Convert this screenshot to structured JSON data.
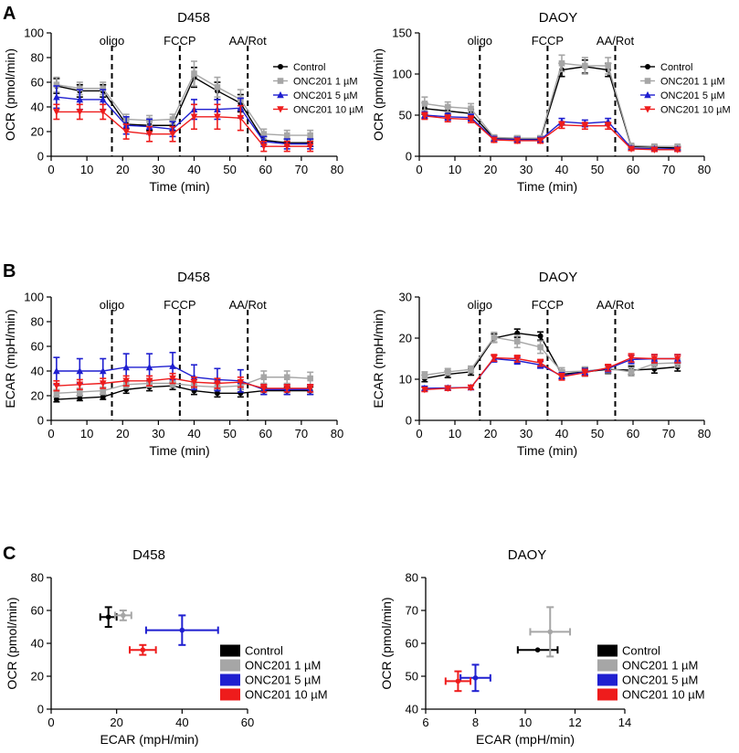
{
  "colors": {
    "control": "#000000",
    "onc1": "#a6a6a6",
    "onc5": "#1f1fd0",
    "onc10": "#ee1c1c"
  },
  "panel_labels": [
    "A",
    "B",
    "C"
  ],
  "chart_data": [
    {
      "id": "a_d458",
      "type": "line",
      "panel": "A",
      "title": "D458",
      "xlabel": "Time (min)",
      "ylabel": "OCR (pmol/min)",
      "xlim": [
        0,
        80
      ],
      "ylim": [
        0,
        100
      ],
      "xticks": [
        0,
        10,
        20,
        30,
        40,
        50,
        60,
        70,
        80
      ],
      "yticks": [
        0,
        20,
        40,
        60,
        80,
        100
      ],
      "x": [
        1.5,
        8,
        14.5,
        21,
        27.5,
        34,
        40,
        46.5,
        53,
        59.5,
        66,
        72.5
      ],
      "vlines": [
        {
          "x": 17,
          "label": "oligo"
        },
        {
          "x": 36,
          "label": "FCCP"
        },
        {
          "x": 55,
          "label": "AA/Rot"
        }
      ],
      "legend": "top-right",
      "series": [
        {
          "name": "Control",
          "color_key": "control",
          "marker": "circle",
          "values": [
            57,
            53,
            53,
            26,
            25,
            25,
            64,
            53,
            43,
            13,
            11,
            11
          ],
          "errors": [
            6,
            5,
            5,
            4,
            4,
            4,
            8,
            7,
            7,
            3,
            3,
            3
          ]
        },
        {
          "name": "ONC201 1 µM",
          "color_key": "onc1",
          "marker": "square",
          "values": [
            58,
            55,
            55,
            30,
            29,
            30,
            67,
            56,
            46,
            18,
            17,
            17
          ],
          "errors": [
            6,
            5,
            5,
            4,
            4,
            4,
            10,
            8,
            8,
            4,
            4,
            4
          ]
        },
        {
          "name": "ONC201 5 µM",
          "color_key": "onc5",
          "marker": "triangle-up",
          "values": [
            48,
            46,
            46,
            25,
            24,
            22,
            38,
            38,
            39,
            12,
            10,
            10
          ],
          "errors": [
            9,
            8,
            8,
            7,
            6,
            6,
            8,
            8,
            8,
            4,
            4,
            4
          ]
        },
        {
          "name": "ONC201 10 µM",
          "color_key": "onc10",
          "marker": "triangle-down",
          "values": [
            36,
            36,
            36,
            20,
            18,
            18,
            32,
            32,
            31,
            8,
            8,
            8
          ],
          "errors": [
            6,
            6,
            6,
            6,
            6,
            6,
            10,
            10,
            10,
            4,
            4,
            4
          ]
        }
      ]
    },
    {
      "id": "a_daoy",
      "type": "line",
      "panel": "A",
      "title": "DAOY",
      "xlabel": "Time (min)",
      "ylabel": "OCR (pmol/min)",
      "xlim": [
        0,
        80
      ],
      "ylim": [
        0,
        150
      ],
      "xticks": [
        0,
        10,
        20,
        30,
        40,
        50,
        60,
        70,
        80
      ],
      "yticks": [
        0,
        50,
        100,
        150
      ],
      "x": [
        1.5,
        8,
        14.5,
        21,
        27.5,
        34,
        40,
        46.5,
        53,
        59.5,
        66,
        72.5
      ],
      "vlines": [
        {
          "x": 17,
          "label": "oligo"
        },
        {
          "x": 36,
          "label": "FCCP"
        },
        {
          "x": 55,
          "label": "AA/Rot"
        }
      ],
      "legend": "top-right",
      "series": [
        {
          "name": "Control",
          "color_key": "control",
          "marker": "circle",
          "values": [
            58,
            55,
            52,
            22,
            21,
            21,
            105,
            109,
            105,
            12,
            11,
            10
          ],
          "errors": [
            7,
            5,
            5,
            3,
            3,
            3,
            8,
            8,
            8,
            2,
            2,
            2
          ]
        },
        {
          "name": "ONC201 1 µM",
          "color_key": "onc1",
          "marker": "square",
          "values": [
            64,
            60,
            58,
            23,
            22,
            22,
            113,
            110,
            110,
            13,
            12,
            12
          ],
          "errors": [
            8,
            6,
            6,
            3,
            3,
            3,
            10,
            10,
            10,
            2,
            2,
            2
          ]
        },
        {
          "name": "ONC201 5 µM",
          "color_key": "onc5",
          "marker": "triangle-up",
          "values": [
            50,
            48,
            47,
            21,
            20,
            20,
            42,
            40,
            42,
            10,
            9,
            9
          ],
          "errors": [
            4,
            4,
            4,
            3,
            3,
            3,
            4,
            4,
            4,
            2,
            2,
            2
          ]
        },
        {
          "name": "ONC201 10 µM",
          "color_key": "onc10",
          "marker": "triangle-down",
          "values": [
            49,
            46,
            45,
            20,
            19,
            19,
            38,
            37,
            37,
            9,
            8,
            8
          ],
          "errors": [
            4,
            4,
            4,
            3,
            3,
            3,
            4,
            4,
            4,
            2,
            2,
            2
          ]
        }
      ]
    },
    {
      "id": "b_d458",
      "type": "line",
      "panel": "B",
      "title": "D458",
      "xlabel": "Time (min)",
      "ylabel": "ECAR (mpH/min)",
      "xlim": [
        0,
        80
      ],
      "ylim": [
        0,
        100
      ],
      "xticks": [
        0,
        10,
        20,
        30,
        40,
        50,
        60,
        70,
        80
      ],
      "yticks": [
        0,
        20,
        40,
        60,
        80,
        100
      ],
      "x": [
        1.5,
        8,
        14.5,
        21,
        27.5,
        34,
        40,
        46.5,
        53,
        59.5,
        66,
        72.5
      ],
      "vlines": [
        {
          "x": 17,
          "label": "oligo"
        },
        {
          "x": 36,
          "label": "FCCP"
        },
        {
          "x": 55,
          "label": "AA/Rot"
        }
      ],
      "legend": "",
      "series": [
        {
          "name": "Control",
          "color_key": "control",
          "marker": "circle",
          "values": [
            17,
            18,
            19,
            25,
            27,
            28,
            24,
            22,
            22,
            24,
            24,
            24
          ],
          "errors": [
            2,
            2,
            2,
            3,
            3,
            3,
            3,
            3,
            3,
            3,
            3,
            3
          ]
        },
        {
          "name": "ONC201 1 µM",
          "color_key": "onc1",
          "marker": "square",
          "values": [
            22,
            23,
            24,
            29,
            30,
            30,
            28,
            27,
            28,
            35,
            35,
            34
          ],
          "errors": [
            3,
            3,
            3,
            3,
            3,
            3,
            3,
            3,
            3,
            5,
            5,
            5
          ]
        },
        {
          "name": "ONC201 5 µM",
          "color_key": "onc5",
          "marker": "triangle-up",
          "values": [
            40,
            40,
            40,
            43,
            43,
            44,
            35,
            33,
            32,
            25,
            25,
            25
          ],
          "errors": [
            11,
            10,
            10,
            11,
            11,
            11,
            10,
            9,
            9,
            4,
            4,
            4
          ]
        },
        {
          "name": "ONC201 10 µM",
          "color_key": "onc10",
          "marker": "triangle-down",
          "values": [
            28,
            29,
            30,
            32,
            32,
            34,
            31,
            30,
            31,
            26,
            26,
            26
          ],
          "errors": [
            4,
            4,
            4,
            4,
            4,
            4,
            4,
            4,
            4,
            3,
            3,
            3
          ]
        }
      ]
    },
    {
      "id": "b_daoy",
      "type": "line",
      "panel": "B",
      "title": "DAOY",
      "xlabel": "Time (min)",
      "ylabel": "ECAR (mpH/min)",
      "xlim": [
        0,
        80
      ],
      "ylim": [
        0,
        30
      ],
      "xticks": [
        0,
        10,
        20,
        30,
        40,
        50,
        60,
        70,
        80
      ],
      "yticks": [
        0,
        10,
        20,
        30
      ],
      "x": [
        1.5,
        8,
        14.5,
        21,
        27.5,
        34,
        40,
        46.5,
        53,
        59.5,
        66,
        72.5
      ],
      "vlines": [
        {
          "x": 17,
          "label": "oligo"
        },
        {
          "x": 36,
          "label": "FCCP"
        },
        {
          "x": 55,
          "label": "AA/Rot"
        }
      ],
      "legend": "",
      "series": [
        {
          "name": "Control",
          "color_key": "control",
          "marker": "circle",
          "values": [
            10.2,
            11.2,
            11.8,
            20,
            21.2,
            20.5,
            11.2,
            11.8,
            12.4,
            12.2,
            12.5,
            13
          ],
          "errors": [
            0.8,
            0.8,
            0.8,
            1,
            1,
            1,
            1,
            1,
            1,
            1,
            1,
            1
          ]
        },
        {
          "name": "ONC201 1 µM",
          "color_key": "onc1",
          "marker": "square",
          "values": [
            11,
            11.8,
            12.4,
            20.2,
            19.2,
            17.8,
            11.8,
            12,
            12.6,
            11.8,
            13.8,
            14
          ],
          "errors": [
            0.8,
            0.8,
            0.8,
            1.2,
            1.5,
            1.5,
            1,
            1,
            1,
            1,
            1,
            1
          ]
        },
        {
          "name": "ONC201 5 µM",
          "color_key": "onc5",
          "marker": "triangle-up",
          "values": [
            7.8,
            7.9,
            8,
            15,
            14.5,
            13.5,
            10.8,
            11.8,
            12.6,
            14.8,
            15,
            15
          ],
          "errors": [
            0.5,
            0.5,
            0.5,
            0.8,
            0.8,
            0.8,
            0.8,
            0.8,
            0.8,
            1,
            1,
            1
          ]
        },
        {
          "name": "ONC201 10 µM",
          "color_key": "onc10",
          "marker": "triangle-down",
          "values": [
            7.5,
            7.8,
            8,
            15.2,
            15,
            14,
            10.6,
            11.6,
            12.8,
            15.2,
            15,
            15
          ],
          "errors": [
            0.5,
            0.5,
            0.5,
            0.8,
            0.8,
            0.8,
            0.8,
            0.8,
            0.8,
            1,
            1,
            1
          ]
        }
      ]
    },
    {
      "id": "c_d458",
      "type": "scatter",
      "panel": "C",
      "title": "D458",
      "xlabel": "ECAR (mpH/min)",
      "ylabel": "OCR (pmol/min)",
      "xlim": [
        0,
        60
      ],
      "ylim": [
        0,
        80
      ],
      "xticks": [
        0,
        20,
        40,
        60
      ],
      "yticks": [
        0,
        20,
        40,
        60,
        80
      ],
      "legend": "bottom-right",
      "points": [
        {
          "name": "Control",
          "color_key": "control",
          "x": 17.5,
          "y": 56,
          "xerr": 2.5,
          "yerr": 6
        },
        {
          "name": "ONC201 1 µM",
          "color_key": "onc1",
          "x": 22,
          "y": 57,
          "xerr": 2.5,
          "yerr": 3
        },
        {
          "name": "ONC201 5 µM",
          "color_key": "onc5",
          "x": 40,
          "y": 48,
          "xerr": 11,
          "yerr": 9
        },
        {
          "name": "ONC201 10 µM",
          "color_key": "onc10",
          "x": 28,
          "y": 36,
          "xerr": 4,
          "yerr": 3
        }
      ]
    },
    {
      "id": "c_daoy",
      "type": "scatter",
      "panel": "C",
      "title": "DAOY",
      "xlabel": "ECAR (mpH/min)",
      "ylabel": "OCR (pmol/min)",
      "xlim": [
        6,
        14
      ],
      "ylim": [
        40,
        80
      ],
      "xticks": [
        6,
        8,
        10,
        12,
        14
      ],
      "yticks": [
        40,
        50,
        60,
        70,
        80
      ],
      "legend": "bottom-right",
      "points": [
        {
          "name": "Control",
          "color_key": "control",
          "x": 10.5,
          "y": 58,
          "xerr": 0.8,
          "yerr": 0
        },
        {
          "name": "ONC201 1 µM",
          "color_key": "onc1",
          "x": 11,
          "y": 63.5,
          "xerr": 0.8,
          "yerr": 7.5
        },
        {
          "name": "ONC201 5 µM",
          "color_key": "onc5",
          "x": 8,
          "y": 49.5,
          "xerr": 0.6,
          "yerr": 4
        },
        {
          "name": "ONC201 10 µM",
          "color_key": "onc10",
          "x": 7.3,
          "y": 48.5,
          "xerr": 0.5,
          "yerr": 3
        }
      ]
    }
  ]
}
